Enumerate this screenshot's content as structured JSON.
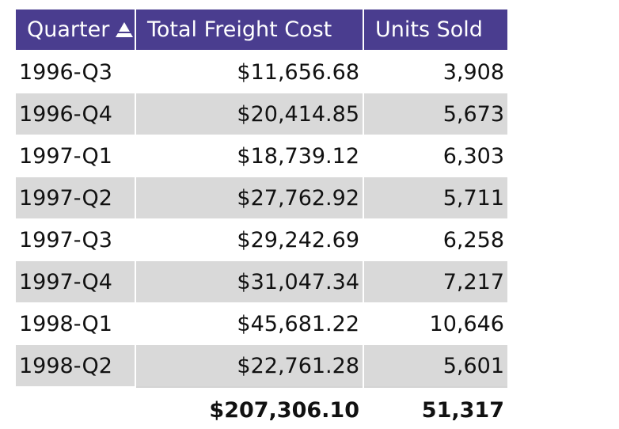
{
  "table": {
    "columns": [
      {
        "label": "Quarter",
        "sort": "ascending",
        "sort_icon": "sort-ascending-icon"
      },
      {
        "label": "Total Freight Cost"
      },
      {
        "label": "Units Sold"
      }
    ],
    "rows": [
      {
        "quarter": "1996-Q3",
        "freight": "$11,656.68",
        "units": "3,908"
      },
      {
        "quarter": "1996-Q4",
        "freight": "$20,414.85",
        "units": "5,673"
      },
      {
        "quarter": "1997-Q1",
        "freight": "$18,739.12",
        "units": "6,303"
      },
      {
        "quarter": "1997-Q2",
        "freight": "$27,762.92",
        "units": "5,711"
      },
      {
        "quarter": "1997-Q3",
        "freight": "$29,242.69",
        "units": "6,258"
      },
      {
        "quarter": "1997-Q4",
        "freight": "$31,047.34",
        "units": "7,217"
      },
      {
        "quarter": "1998-Q1",
        "freight": "$45,681.22",
        "units": "10,646"
      },
      {
        "quarter": "1998-Q2",
        "freight": "$22,761.28",
        "units": "5,601"
      }
    ],
    "totals": {
      "freight": "$207,306.10",
      "units": "51,317"
    }
  },
  "colors": {
    "header_bg": "#4a3d8f",
    "header_text": "#ffffff",
    "alt_row_bg": "#d9d9d9"
  }
}
